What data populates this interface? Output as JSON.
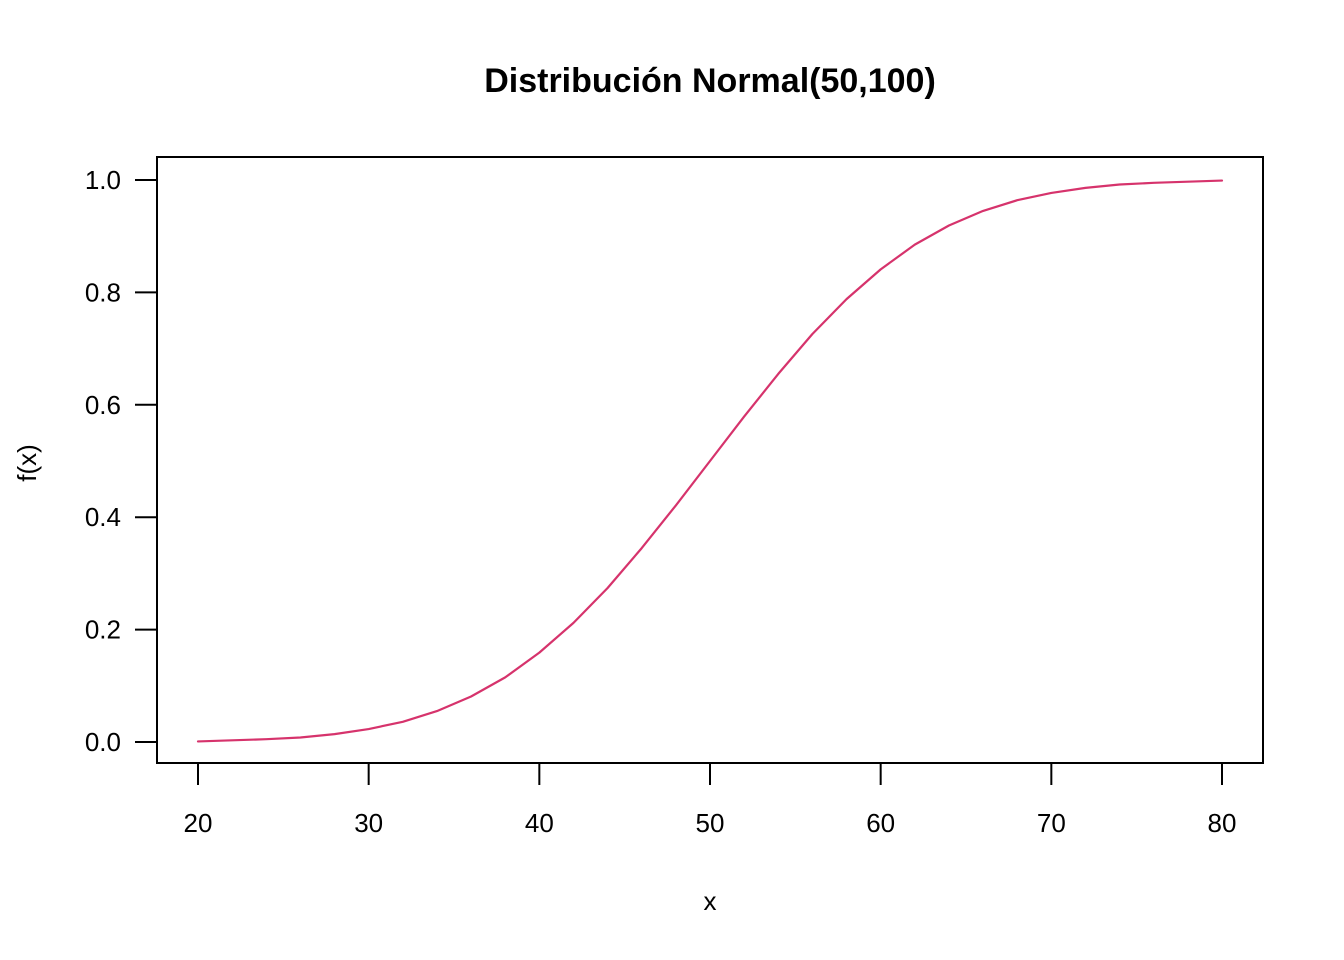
{
  "chart_data": {
    "type": "line",
    "title": "Distribución Normal(50,100)",
    "xlabel": "x",
    "ylabel": "f(x)",
    "xlim": [
      20,
      80
    ],
    "ylim": [
      0,
      1
    ],
    "x_ticks": [
      20,
      30,
      40,
      50,
      60,
      70,
      80
    ],
    "x_tick_labels": [
      "20",
      "30",
      "40",
      "50",
      "60",
      "70",
      "80"
    ],
    "y_ticks": [
      0,
      0.2,
      0.4,
      0.6,
      0.8,
      1.0
    ],
    "y_tick_labels": [
      "0.0",
      "0.2",
      "0.4",
      "0.6",
      "0.8",
      "1.0"
    ],
    "grid": false,
    "series": [
      {
        "color": "#d6336c",
        "x": [
          20,
          22,
          24,
          26,
          28,
          30,
          32,
          34,
          36,
          38,
          40,
          42,
          44,
          46,
          48,
          50,
          52,
          54,
          56,
          58,
          60,
          62,
          64,
          66,
          68,
          70,
          72,
          74,
          76,
          78,
          80
        ],
        "y": [
          0.001,
          0.003,
          0.005,
          0.008,
          0.014,
          0.023,
          0.036,
          0.055,
          0.081,
          0.115,
          0.159,
          0.212,
          0.274,
          0.345,
          0.421,
          0.5,
          0.579,
          0.655,
          0.726,
          0.788,
          0.841,
          0.885,
          0.919,
          0.945,
          0.964,
          0.977,
          0.986,
          0.992,
          0.995,
          0.997,
          0.999
        ]
      }
    ]
  }
}
